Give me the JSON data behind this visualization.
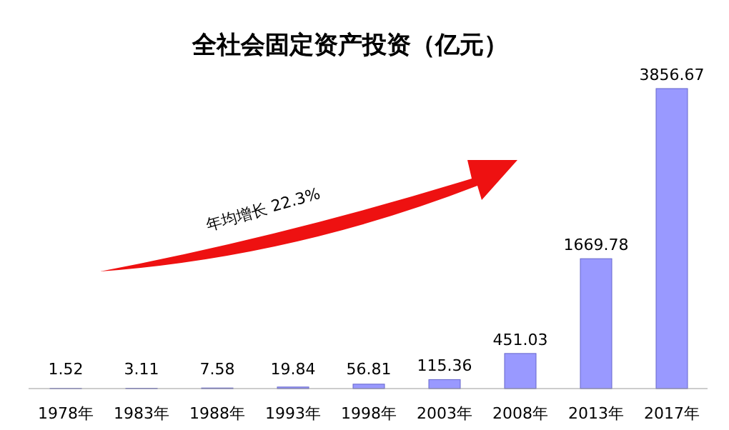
{
  "chart_data": {
    "type": "bar",
    "title": "全社会固定资产投资（亿元）",
    "categories": [
      "1978年",
      "1983年",
      "1988年",
      "1993年",
      "1998年",
      "2003年",
      "2008年",
      "2013年",
      "2017年"
    ],
    "values": [
      1.52,
      3.11,
      7.58,
      19.84,
      56.81,
      115.36,
      451.03,
      1669.78,
      3856.67
    ],
    "color": "#9999ff",
    "data_labels": true,
    "annotations": [
      "年均增长 22.3%"
    ]
  }
}
